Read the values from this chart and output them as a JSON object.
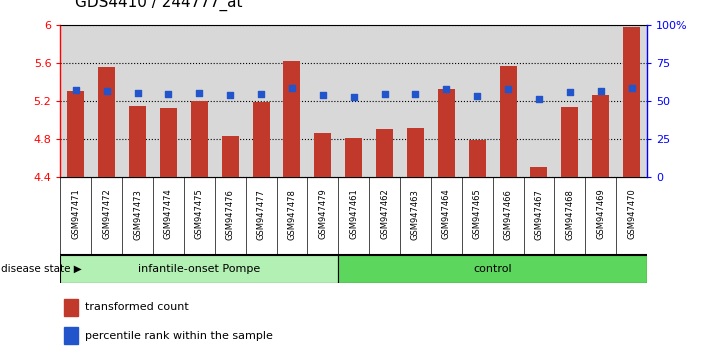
{
  "title": "GDS4410 / 244777_at",
  "samples": [
    "GSM947471",
    "GSM947472",
    "GSM947473",
    "GSM947474",
    "GSM947475",
    "GSM947476",
    "GSM947477",
    "GSM947478",
    "GSM947479",
    "GSM947461",
    "GSM947462",
    "GSM947463",
    "GSM947464",
    "GSM947465",
    "GSM947466",
    "GSM947467",
    "GSM947468",
    "GSM947469",
    "GSM947470"
  ],
  "red_values": [
    5.3,
    5.56,
    5.15,
    5.13,
    5.2,
    4.83,
    5.19,
    5.62,
    4.86,
    4.81,
    4.9,
    4.91,
    5.32,
    4.79,
    5.57,
    4.51,
    5.14,
    5.26,
    5.98
  ],
  "blue_values": [
    5.31,
    5.3,
    5.28,
    5.27,
    5.28,
    5.26,
    5.27,
    5.34,
    5.26,
    5.24,
    5.27,
    5.27,
    5.33,
    5.25,
    5.33,
    5.22,
    5.29,
    5.3,
    5.34
  ],
  "group1_count": 9,
  "group2_count": 10,
  "group1_label": "infantile-onset Pompe",
  "group2_label": "control",
  "disease_state_label": "disease state",
  "ymin": 4.4,
  "ymax": 6.0,
  "y_ticks": [
    4.4,
    4.8,
    5.2,
    5.6,
    6.0
  ],
  "right_ticks": [
    0,
    25,
    50,
    75,
    100
  ],
  "right_tick_labels": [
    "0",
    "25",
    "50",
    "75",
    "100%"
  ],
  "bar_color": "#c0392b",
  "dot_color": "#2255cc",
  "group1_bg": "#b3f0b3",
  "group2_bg": "#5cd65c",
  "legend_bar_label": "transformed count",
  "legend_dot_label": "percentile rank within the sample",
  "bar_width": 0.55,
  "title_fontsize": 11,
  "label_fontsize": 8,
  "tick_fontsize": 8,
  "sample_fontsize": 6.0
}
